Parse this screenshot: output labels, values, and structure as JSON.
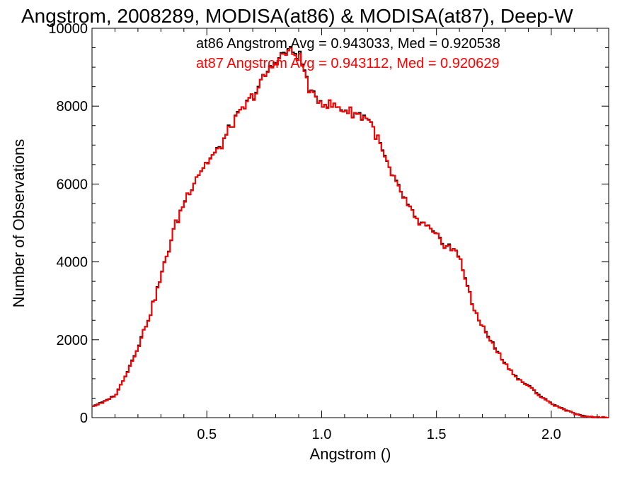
{
  "chart_data": {
    "type": "line",
    "step": true,
    "title": "Angstrom, 2008289, MODISA(at86) & MODISA(at87), Deep-W",
    "xlabel": "Angstrom ()",
    "ylabel": "Number of Observations",
    "xlim": [
      0.0,
      2.25
    ],
    "ylim": [
      0,
      10000
    ],
    "x_ticks": [
      {
        "value": 0.5,
        "label": "0.5"
      },
      {
        "value": 1.0,
        "label": "1.0"
      },
      {
        "value": 1.5,
        "label": "1.5"
      },
      {
        "value": 2.0,
        "label": "2.0"
      }
    ],
    "y_ticks": [
      {
        "value": 0,
        "label": "0"
      },
      {
        "value": 2000,
        "label": "2000"
      },
      {
        "value": 4000,
        "label": "4000"
      },
      {
        "value": 6000,
        "label": "6000"
      },
      {
        "value": 8000,
        "label": "8000"
      },
      {
        "value": 10000,
        "label": "10000"
      }
    ],
    "annotations": [
      {
        "text": "at86 Angstrom Avg = 0.943033, Med = 0.920538",
        "color": "#000000"
      },
      {
        "text": "at87 Angstrom Avg = 0.943112, Med = 0.920629",
        "color": "#ff0000"
      }
    ],
    "series": [
      {
        "color": "#000000",
        "x": [
          0.0,
          0.05,
          0.1,
          0.15,
          0.2,
          0.25,
          0.3,
          0.35,
          0.4,
          0.45,
          0.5,
          0.55,
          0.6,
          0.65,
          0.7,
          0.75,
          0.8,
          0.85,
          0.9,
          0.95,
          1.0,
          1.05,
          1.1,
          1.15,
          1.2,
          1.25,
          1.3,
          1.35,
          1.4,
          1.45,
          1.5,
          1.55,
          1.6,
          1.65,
          1.7,
          1.75,
          1.8,
          1.85,
          1.9,
          1.95,
          2.0,
          2.05,
          2.1,
          2.15,
          2.2,
          2.25
        ],
        "values": [
          300,
          420,
          600,
          1200,
          1900,
          2700,
          3700,
          4800,
          5600,
          6200,
          6600,
          6900,
          7500,
          7900,
          8300,
          8800,
          9200,
          9450,
          9300,
          8300,
          8100,
          8000,
          7900,
          7800,
          7700,
          7000,
          6200,
          5700,
          5100,
          4900,
          4600,
          4400,
          4100,
          2900,
          2300,
          1800,
          1350,
          1000,
          800,
          550,
          350,
          220,
          100,
          30,
          0,
          0
        ]
      },
      {
        "color": "#ff0000",
        "x": [
          0.0,
          0.05,
          0.1,
          0.15,
          0.2,
          0.25,
          0.3,
          0.35,
          0.4,
          0.45,
          0.5,
          0.55,
          0.6,
          0.65,
          0.7,
          0.75,
          0.8,
          0.85,
          0.9,
          0.95,
          1.0,
          1.05,
          1.1,
          1.15,
          1.2,
          1.25,
          1.3,
          1.35,
          1.4,
          1.45,
          1.5,
          1.55,
          1.6,
          1.65,
          1.7,
          1.75,
          1.8,
          1.85,
          1.9,
          1.95,
          2.0,
          2.05,
          2.1,
          2.15,
          2.2,
          2.25
        ],
        "values": [
          290,
          410,
          590,
          1190,
          1890,
          2690,
          3690,
          4790,
          5590,
          6190,
          6590,
          6890,
          7490,
          7890,
          8290,
          8780,
          9180,
          9400,
          9250,
          8280,
          8090,
          7990,
          7890,
          7790,
          7690,
          6990,
          6190,
          5690,
          5090,
          4890,
          4590,
          4390,
          4090,
          2890,
          2290,
          1790,
          1340,
          990,
          790,
          540,
          340,
          210,
          95,
          25,
          0,
          0
        ]
      }
    ]
  }
}
